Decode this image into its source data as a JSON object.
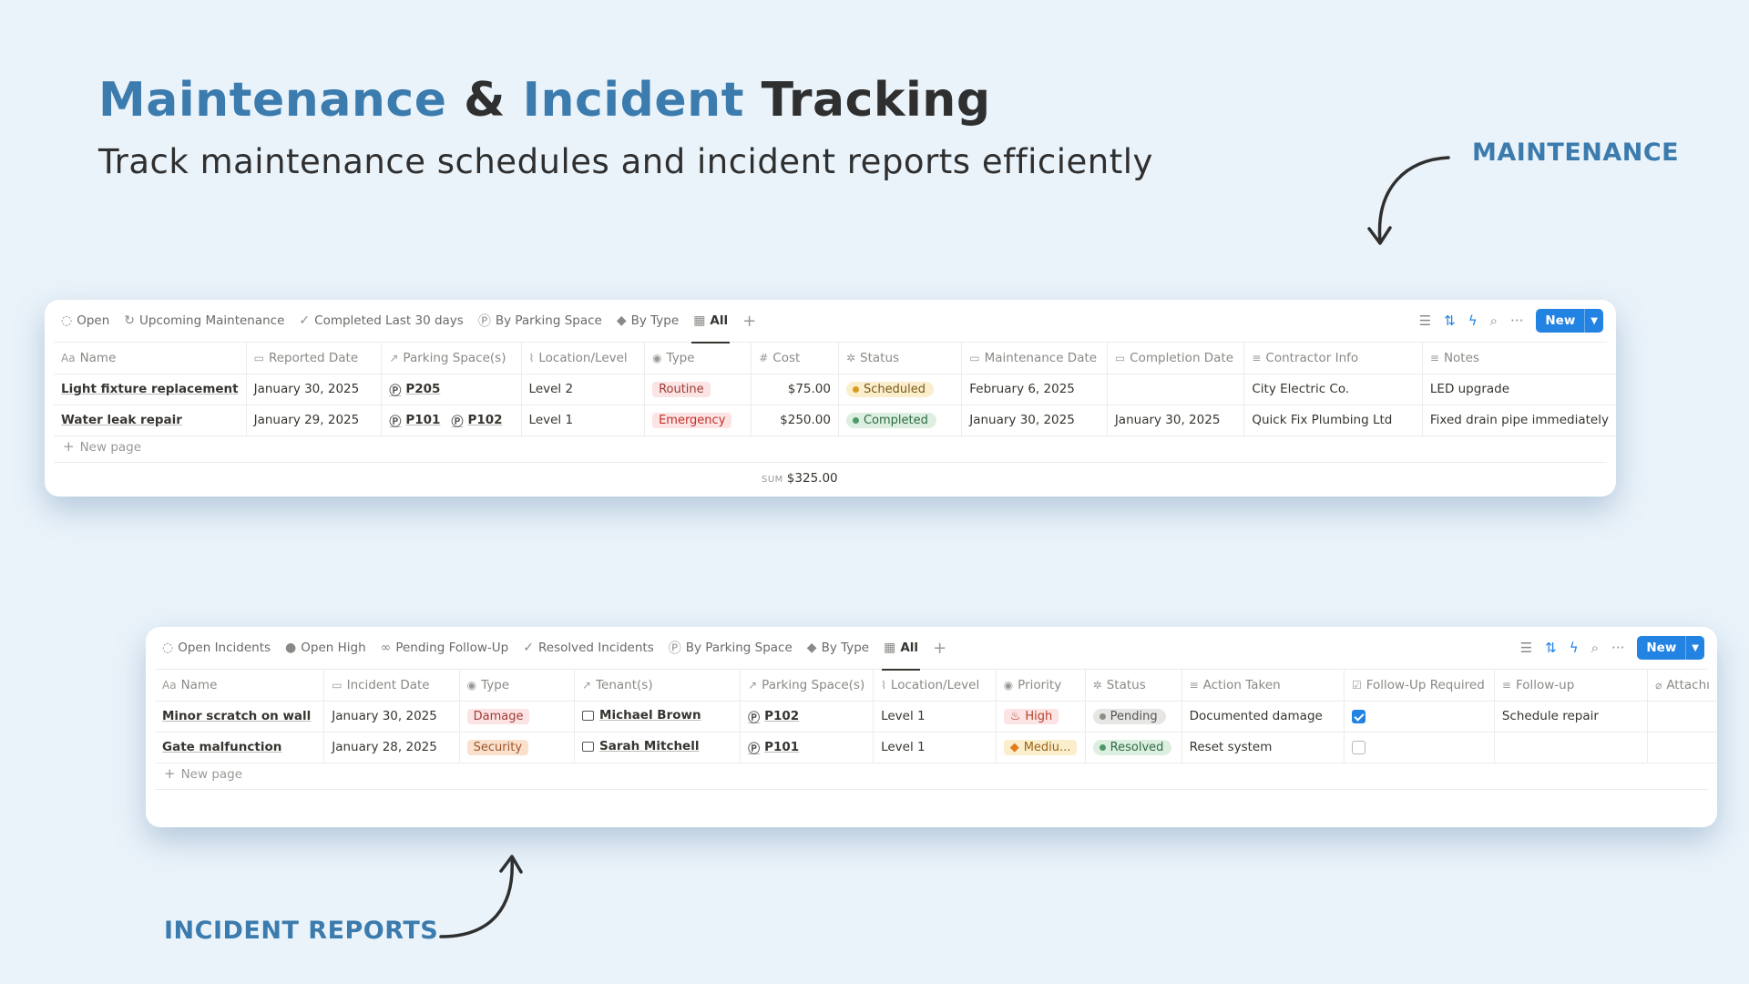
{
  "hero": {
    "title_part1": "Maintenance",
    "title_amp": " & ",
    "title_part2": "Incident",
    "title_part3": " Tracking",
    "subtitle": "Track maintenance schedules and incident reports efficiently"
  },
  "callouts": {
    "maintenance": "MAINTENANCE",
    "incident": "INCIDENT REPORTS"
  },
  "colors": {
    "accent": "#3b7bad",
    "button": "#2383e2",
    "background": "#eaf3fa"
  },
  "maintenance": {
    "views": [
      {
        "label": "Open",
        "icon": "open-circle-icon"
      },
      {
        "label": "Upcoming Maintenance",
        "icon": "refresh-icon"
      },
      {
        "label": "Completed Last 30 days",
        "icon": "check-icon"
      },
      {
        "label": "By Parking Space",
        "icon": "parking-icon"
      },
      {
        "label": "By Type",
        "icon": "tag-icon"
      },
      {
        "label": "All",
        "icon": "table-icon"
      }
    ],
    "new_label": "New",
    "columns": [
      "Name",
      "Reported Date",
      "Parking Space(s)",
      "Location/Level",
      "Type",
      "Cost",
      "Status",
      "Maintenance Date",
      "Completion Date",
      "Contractor Info",
      "Notes"
    ],
    "rows": [
      {
        "name": "Light fixture replacement",
        "reported": "January 30, 2025",
        "spaces": [
          "P205"
        ],
        "level": "Level 2",
        "type": "Routine",
        "cost": "$75.00",
        "status": "Scheduled",
        "maint_date": "February 6, 2025",
        "completion": "",
        "contractor": "City Electric Co.",
        "notes": "LED upgrade"
      },
      {
        "name": "Water leak repair",
        "reported": "January 29, 2025",
        "spaces": [
          "P101",
          "P102"
        ],
        "level": "Level 1",
        "type": "Emergency",
        "cost": "$250.00",
        "status": "Completed",
        "maint_date": "January 30, 2025",
        "completion": "January 30, 2025",
        "contractor": "Quick Fix Plumbing Ltd",
        "notes": "Fixed drain pipe immediately"
      }
    ],
    "new_page": "New page",
    "sum_caption": "SUM",
    "sum_value": "$325.00"
  },
  "incidents": {
    "views": [
      {
        "label": "Open Incidents",
        "icon": "open-circle-icon"
      },
      {
        "label": "Open High",
        "icon": "alert-icon"
      },
      {
        "label": "Pending Follow-Up",
        "icon": "binoculars-icon"
      },
      {
        "label": "Resolved Incidents",
        "icon": "check-icon"
      },
      {
        "label": "By Parking Space",
        "icon": "parking-icon"
      },
      {
        "label": "By Type",
        "icon": "tag-icon"
      },
      {
        "label": "All",
        "icon": "table-icon"
      }
    ],
    "new_label": "New",
    "columns": [
      "Name",
      "Incident Date",
      "Type",
      "Tenant(s)",
      "Parking Space(s)",
      "Location/Level",
      "Priority",
      "Status",
      "Action Taken",
      "Follow-Up Required",
      "Follow-up",
      "Attachı"
    ],
    "rows": [
      {
        "name": "Minor scratch on wall",
        "date": "January 30, 2025",
        "type": "Damage",
        "tenant": "Michael Brown",
        "space": "P102",
        "level": "Level 1",
        "priority": "High",
        "status": "Pending",
        "action": "Documented damage",
        "followup_required": true,
        "followup": "Schedule repair"
      },
      {
        "name": "Gate malfunction",
        "date": "January 28, 2025",
        "type": "Security",
        "tenant": "Sarah Mitchell",
        "space": "P101",
        "level": "Level 1",
        "priority": "Mediu...",
        "status": "Resolved",
        "action": "Reset system",
        "followup_required": false,
        "followup": ""
      }
    ],
    "new_page": "New page"
  }
}
